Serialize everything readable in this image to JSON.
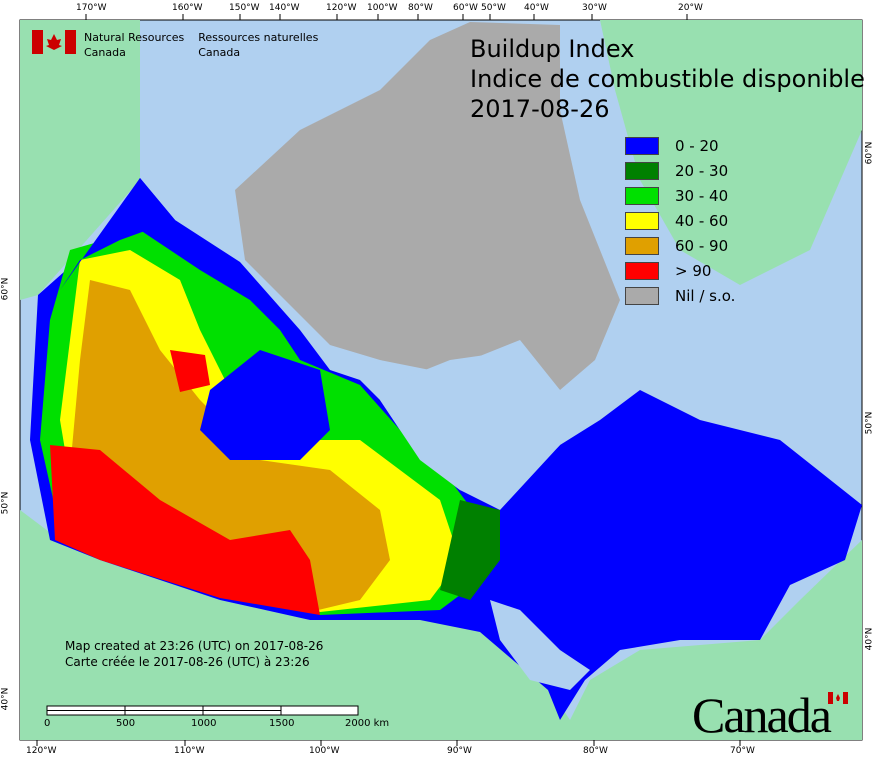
{
  "header": {
    "agency_en": [
      "Natural Resources",
      "Canada"
    ],
    "agency_fr": [
      "Ressources naturelles",
      "Canada"
    ],
    "title_en": "Buildup Index",
    "title_fr": "Indice de combustible disponible",
    "date": "2017-08-26"
  },
  "legend": [
    {
      "label": "0 - 20",
      "color": "#0000ff"
    },
    {
      "label": "20 - 30",
      "color": "#008000"
    },
    {
      "label": "30 - 40",
      "color": "#00e000"
    },
    {
      "label": "40 - 60",
      "color": "#ffff00"
    },
    {
      "label": "60 - 90",
      "color": "#e0a000"
    },
    {
      "label": "> 90",
      "color": "#ff0000"
    },
    {
      "label": "Nil / s.o.",
      "color": "#aaaaaa"
    }
  ],
  "top_ticks": [
    "170°W",
    "160°W",
    "150°W",
    "140°W",
    "120°W",
    "100°W",
    "80°W",
    "60°W",
    "50°W",
    "40°W",
    "30°W",
    "20°W"
  ],
  "bottom_ticks": [
    "120°W",
    "110°W",
    "100°W",
    "90°W",
    "80°W",
    "70°W"
  ],
  "left_ticks": [
    "60°N",
    "50°N",
    "40°N"
  ],
  "right_ticks": [
    "60°N",
    "50°N",
    "40°N"
  ],
  "credit": [
    "Map created at 23:26 (UTC) on 2017-08-26",
    "Carte créée le 2017-08-26 (UTC) à 23:26"
  ],
  "scale_bar": {
    "labels": [
      "0",
      "500",
      "1000",
      "1500",
      "2000 km"
    ]
  },
  "wordmark": "Canada",
  "colors": {
    "ocean": "#b0d0f0",
    "land": "#98e0b0"
  }
}
